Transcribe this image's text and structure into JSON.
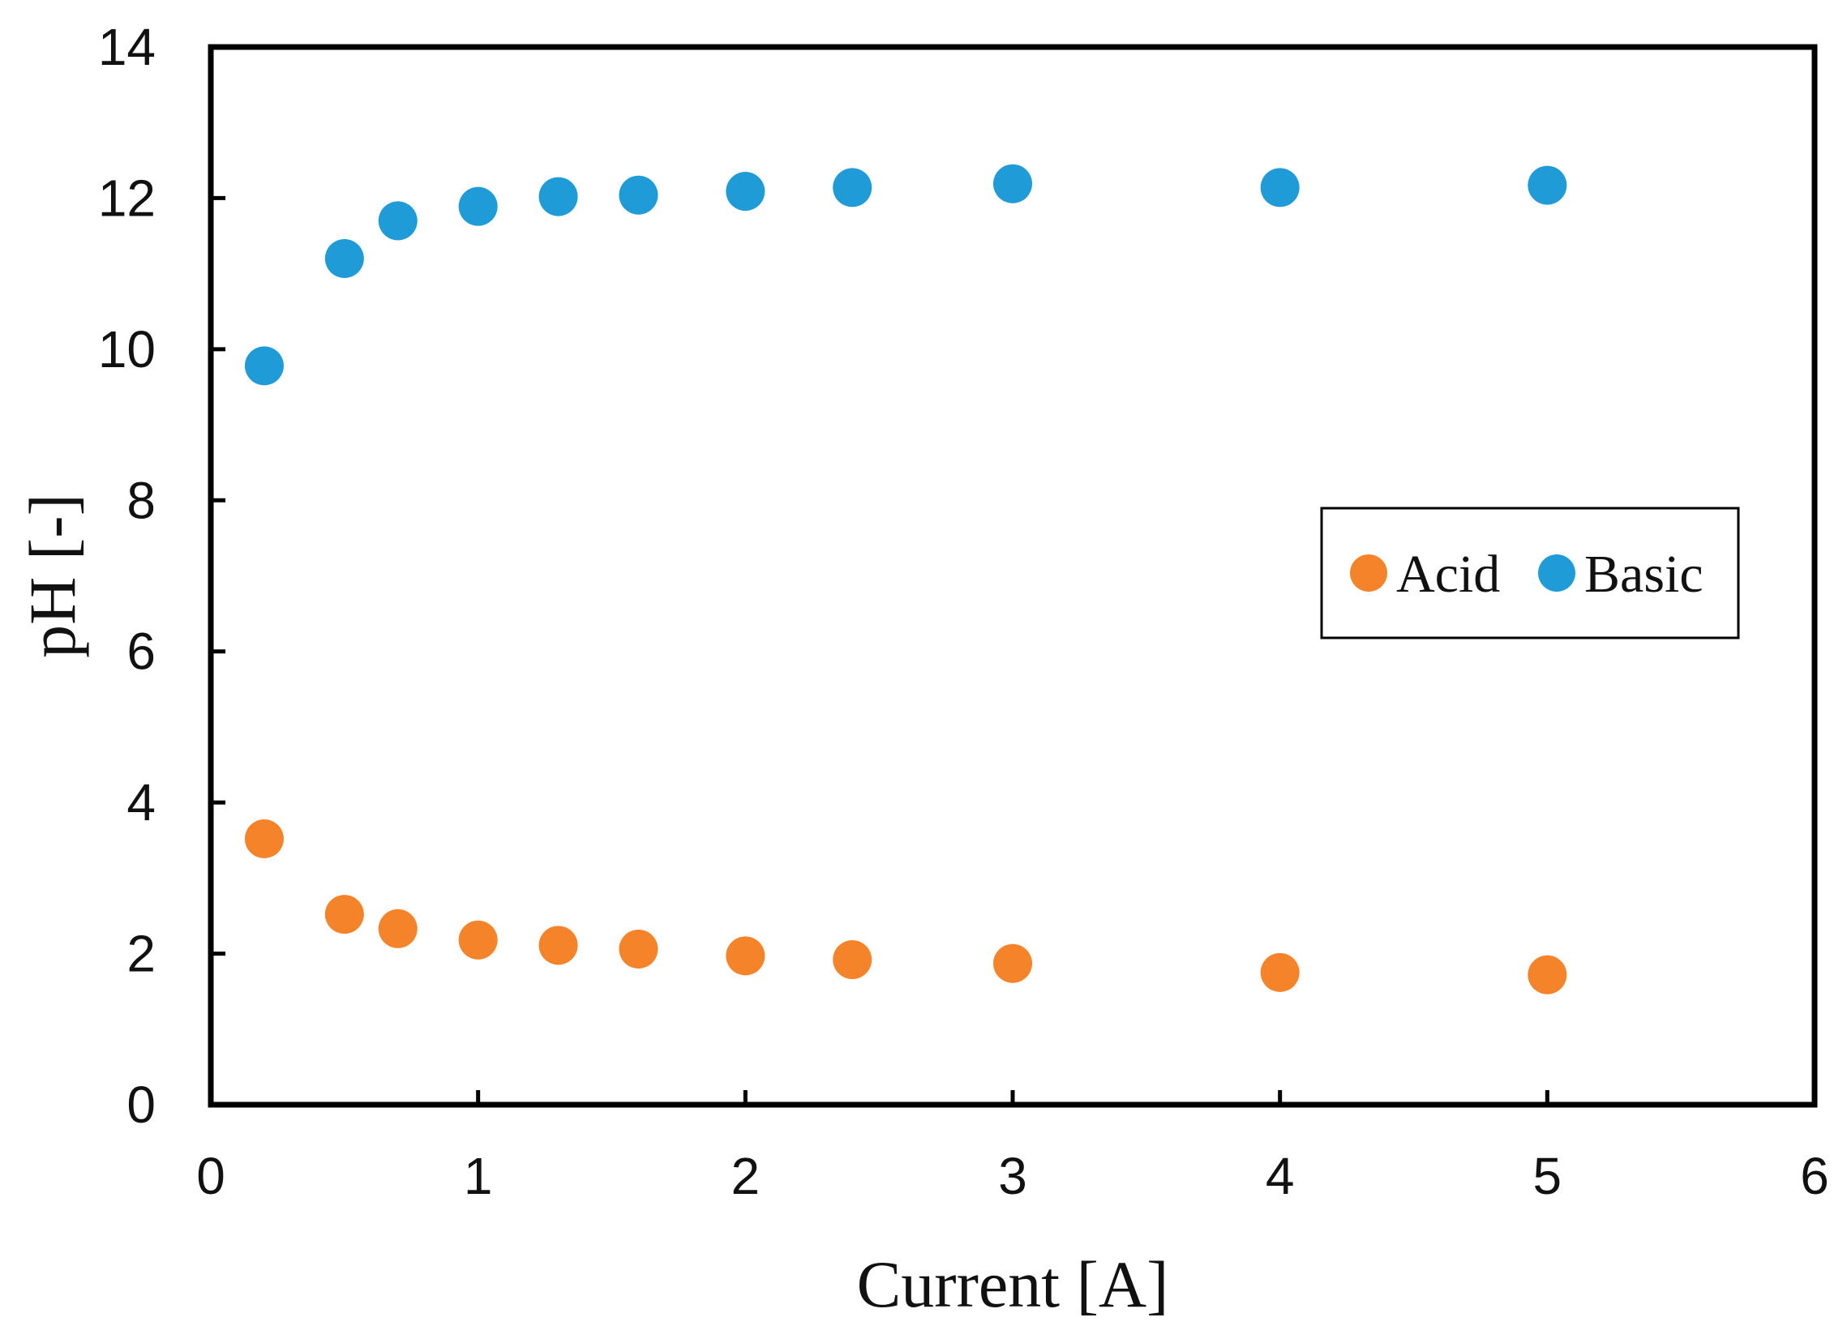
{
  "chart_data": {
    "type": "scatter",
    "title": "",
    "xlabel": "Current [A]",
    "ylabel": "pH [-]",
    "xlim": [
      0,
      6
    ],
    "ylim": [
      0,
      14
    ],
    "x_ticks": [
      "0",
      "1",
      "2",
      "3",
      "4",
      "5",
      "6"
    ],
    "y_ticks": [
      "0",
      "2",
      "4",
      "6",
      "8",
      "10",
      "12",
      "14"
    ],
    "grid": false,
    "legend_position": "right",
    "series": [
      {
        "name": "Acid",
        "color": "#F5832A",
        "x": [
          0.2,
          0.5,
          0.7,
          1.0,
          1.3,
          1.6,
          2.0,
          2.4,
          3.0,
          4.0,
          5.0
        ],
        "y": [
          3.52,
          2.52,
          2.33,
          2.18,
          2.11,
          2.06,
          1.97,
          1.92,
          1.87,
          1.75,
          1.72
        ]
      },
      {
        "name": "Basic",
        "color": "#1F9BD7",
        "x": [
          0.2,
          0.5,
          0.7,
          1.0,
          1.3,
          1.6,
          2.0,
          2.4,
          3.0,
          4.0,
          5.0
        ],
        "y": [
          9.78,
          11.2,
          11.7,
          11.89,
          12.02,
          12.04,
          12.09,
          12.14,
          12.19,
          12.14,
          12.17
        ]
      }
    ]
  }
}
